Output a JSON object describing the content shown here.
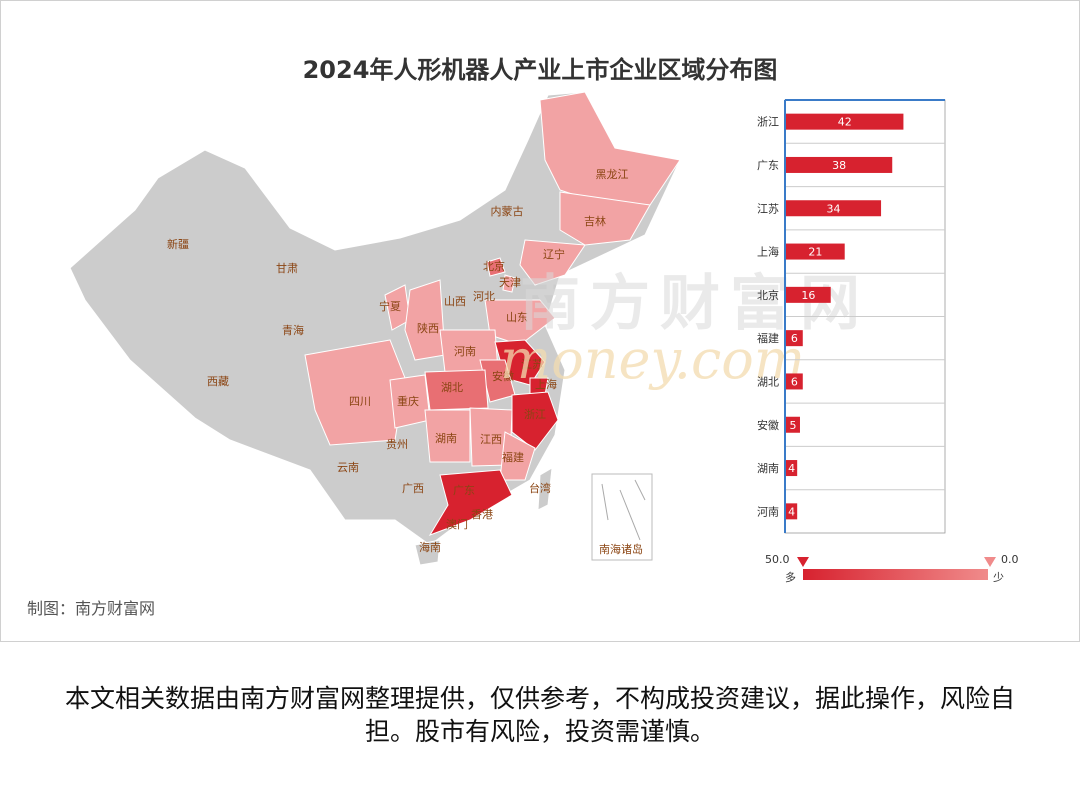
{
  "title": "2024年人形机器人产业上市企业区域分布图",
  "credit": "制图：南方财富网",
  "watermark": {
    "cn": "南方财富网",
    "en": "money.com"
  },
  "footer": "本文相关数据由南方财富网整理提供，仅供参考，不构成投资建议，据此操作，风险自担。股市有风险，投资需谨慎。",
  "colors": {
    "high": "#d7222f",
    "mid": "#e86f73",
    "low": "#f2a3a4",
    "none": "#cccccc",
    "label": "#8b4513"
  },
  "map_labels": [
    "新疆",
    "西藏",
    "青海",
    "甘肃",
    "内蒙古",
    "黑龙江",
    "吉林",
    "辽宁",
    "北京",
    "天津",
    "河北",
    "山西",
    "宁夏",
    "陕西",
    "山东",
    "河南",
    "江苏",
    "安徽",
    "上海",
    "湖北",
    "四川",
    "重庆",
    "浙江",
    "湖南",
    "贵州",
    "江西",
    "福建",
    "云南",
    "广西",
    "广东",
    "台湾",
    "香港",
    "澳门",
    "海南",
    "南海诸岛"
  ],
  "legend": {
    "max": "50.0",
    "min": "0.0",
    "max_text": "多",
    "min_text": "少"
  },
  "chart_data": {
    "type": "bar",
    "categories": [
      "浙江",
      "广东",
      "江苏",
      "上海",
      "北京",
      "福建",
      "湖北",
      "安徽",
      "湖南",
      "河南"
    ],
    "values": [
      42,
      38,
      34,
      21,
      16,
      6,
      6,
      5,
      4,
      4
    ],
    "xlim": [
      0,
      50
    ]
  }
}
